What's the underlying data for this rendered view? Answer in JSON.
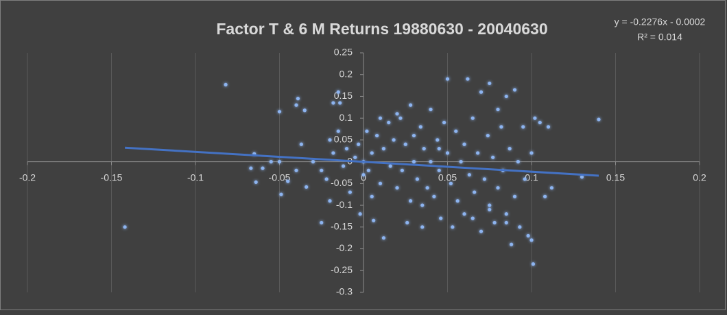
{
  "chart_data": {
    "type": "scatter",
    "title": "Factor T & 6 M Returns 19880630 - 20040630",
    "color": "#8db4f0",
    "trendline": {
      "equation": "y = -0.2276x - 0.0002",
      "r_squared": "R² = 0.014",
      "slope": -0.2276,
      "intercept": -0.0002,
      "x": [
        -0.142,
        0.14
      ],
      "color": "#4472c4"
    },
    "xlim": [
      -0.2,
      0.2
    ],
    "ylim": [
      -0.3,
      0.25
    ],
    "xticks": [
      -0.2,
      -0.15,
      -0.1,
      -0.05,
      0,
      0.05,
      0.1,
      0.15,
      0.2
    ],
    "yticks": [
      0.25,
      0.2,
      0.15,
      0.1,
      0.05,
      0,
      -0.05,
      -0.1,
      -0.15,
      -0.2,
      -0.25,
      -0.3
    ],
    "grid": true,
    "x": [
      -0.142,
      -0.082,
      -0.05,
      -0.039,
      -0.04,
      -0.035,
      -0.018,
      -0.015,
      -0.014,
      -0.065,
      -0.067,
      -0.064,
      -0.06,
      -0.055,
      -0.05,
      -0.049,
      -0.045,
      -0.04,
      -0.037,
      -0.034,
      -0.03,
      -0.025,
      -0.022,
      -0.02,
      -0.018,
      -0.015,
      -0.012,
      -0.01,
      -0.008,
      -0.005,
      -0.003,
      -0.002,
      -0.025,
      -0.02,
      0,
      0.002,
      0.003,
      0.005,
      0.005,
      0.006,
      0.008,
      0.01,
      0.012,
      0.012,
      0.015,
      0.016,
      0.018,
      0.02,
      0.022,
      0.023,
      0.025,
      0.026,
      0.028,
      0.03,
      0.03,
      0.032,
      0.034,
      0.035,
      0.036,
      0.038,
      0.04,
      0.04,
      0.042,
      0.044,
      0.045,
      0.046,
      0.048,
      0.05,
      0.05,
      0.052,
      0.053,
      0.055,
      0.056,
      0.058,
      0.06,
      0.06,
      0.062,
      0.063,
      0.065,
      0.066,
      0.068,
      0.07,
      0.07,
      0.072,
      0.074,
      0.075,
      0.075,
      0.077,
      0.078,
      0.08,
      0.08,
      0.082,
      0.083,
      0.085,
      0.085,
      0.087,
      0.088,
      0.09,
      0.09,
      0.092,
      0.093,
      0.095,
      0.096,
      0.098,
      0.1,
      0.101,
      0.1,
      0.102,
      0.105,
      0.108,
      0.11,
      0.112,
      0.13,
      0.14,
      0,
      0.01,
      0.02,
      0.028,
      0.035,
      0.045,
      0.065,
      0.075,
      0.085
    ],
    "y": [
      -0.15,
      0.177,
      0.115,
      0.145,
      0.13,
      0.118,
      0.135,
      0.16,
      0.135,
      0.018,
      -0.015,
      -0.047,
      -0.015,
      0,
      0,
      -0.075,
      -0.045,
      -0.02,
      0.04,
      -0.058,
      0,
      -0.02,
      -0.04,
      0.05,
      0.02,
      0.07,
      -0.01,
      0.03,
      -0.07,
      0.01,
      0.04,
      -0.12,
      -0.14,
      -0.09,
      0,
      0.07,
      -0.02,
      0.02,
      -0.08,
      -0.135,
      0.06,
      -0.05,
      0.03,
      -0.175,
      0.09,
      -0.01,
      0.05,
      -0.06,
      0.1,
      -0.02,
      0.04,
      -0.14,
      -0.09,
      0.06,
      0,
      -0.04,
      0.08,
      -0.1,
      0.03,
      -0.06,
      0.12,
      0,
      -0.08,
      0.05,
      -0.02,
      -0.13,
      0.09,
      0.19,
      0.02,
      -0.05,
      -0.15,
      0.07,
      -0.09,
      0,
      0.04,
      -0.12,
      0.19,
      -0.03,
      0.1,
      -0.07,
      0.02,
      0.16,
      -0.16,
      -0.04,
      0.06,
      0.18,
      -0.1,
      0.01,
      -0.14,
      0.12,
      -0.06,
      0.08,
      -0.02,
      0.15,
      -0.12,
      0.03,
      -0.19,
      0.165,
      -0.08,
      0,
      -0.15,
      0.08,
      -0.04,
      -0.17,
      0.02,
      -0.235,
      -0.18,
      0.1,
      0.09,
      -0.08,
      0.08,
      -0.06,
      -0.035,
      0.097,
      -0.03,
      0.1,
      0.11,
      0.13,
      -0.15,
      0.03,
      -0.13,
      -0.11,
      -0.14
    ]
  }
}
